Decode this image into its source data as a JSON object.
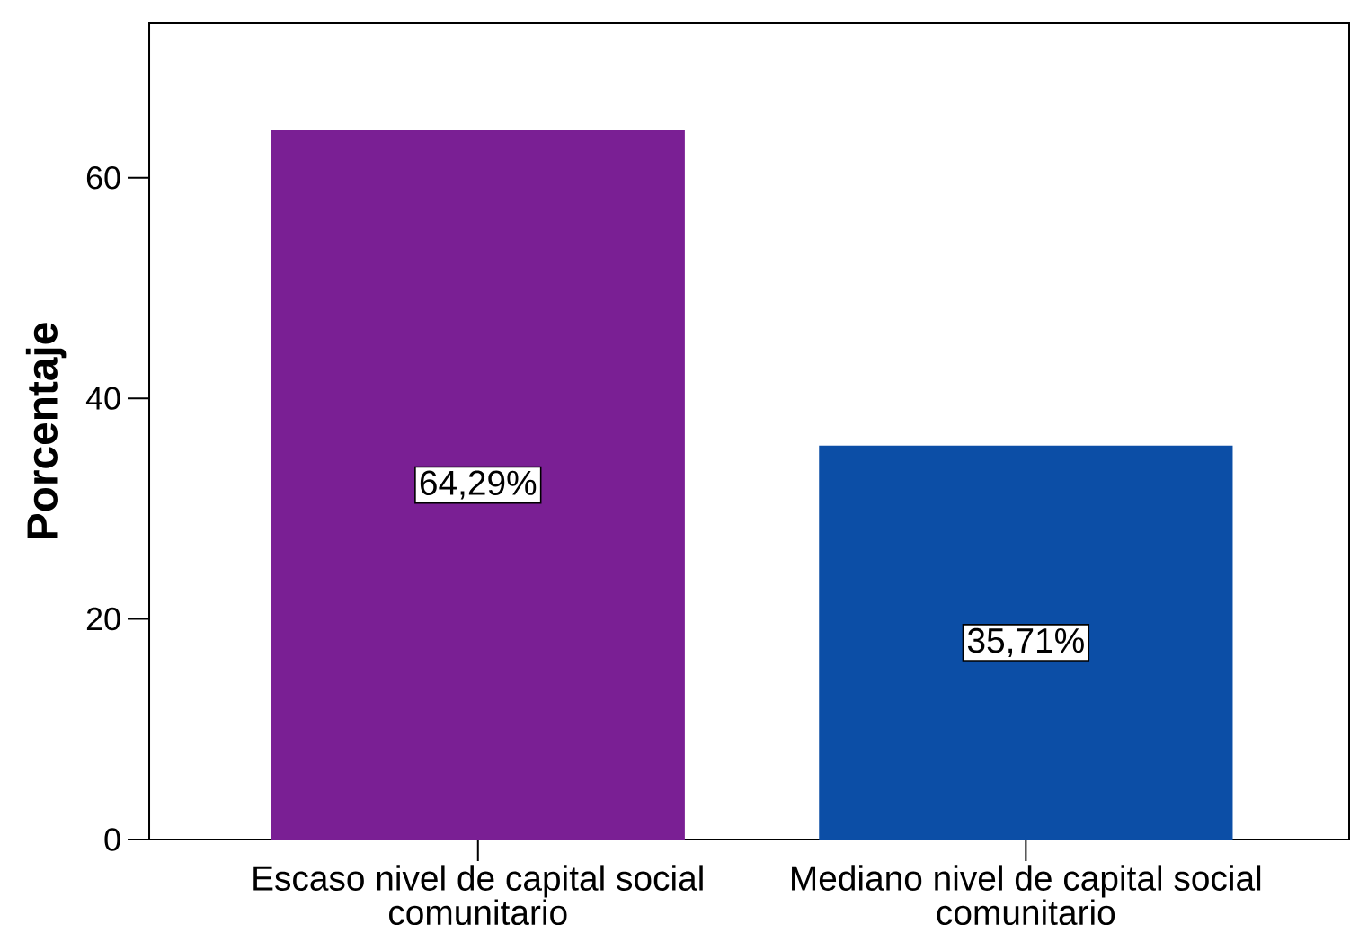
{
  "chart_data": {
    "type": "bar",
    "ylabel": "Porcentaje",
    "categories": [
      "Escaso nivel de capital social comunitario",
      "Mediano nivel de capital social comunitario"
    ],
    "values": [
      64.29,
      35.71
    ],
    "colors": [
      "#7a1f94",
      "#0c4ea6"
    ],
    "value_labels": [
      "64,29%",
      "35,71%"
    ],
    "ylim": [
      0,
      74
    ],
    "yticks": [
      0,
      20,
      40,
      60
    ]
  }
}
